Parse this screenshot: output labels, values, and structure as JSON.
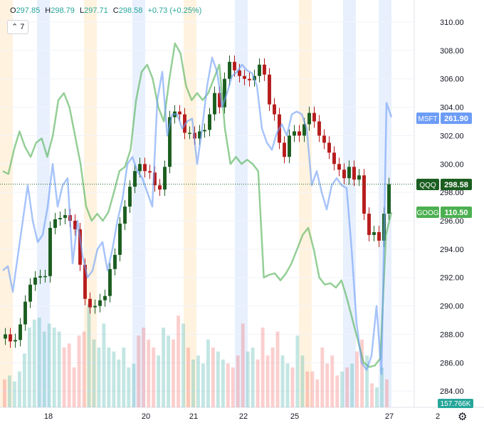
{
  "header": {
    "open_label": "O",
    "open": "297.85",
    "high_label": "H",
    "high": "298.79",
    "low_label": "L",
    "low": "297.71",
    "close_label": "C",
    "close": "298.58",
    "change": "+0.73 (+0.25%)"
  },
  "studies_button": {
    "chevron": "chevron-up-icon",
    "count": "7"
  },
  "settings_icon": "gear-icon",
  "colors": {
    "up": "#26a69a",
    "down": "#ef5350",
    "candle_up": "#1b5e20",
    "candle_down": "#b71c1c",
    "msft": "#6d9cf7",
    "goog": "#4caf50",
    "qqq_tag": "#1b5e20",
    "band_orange": "#fff3e0",
    "band_blue": "#e8f0fe"
  },
  "chart_data": {
    "type": "candlestick",
    "x_ticks": [
      "18",
      "20",
      "21",
      "22",
      "25",
      "27",
      "2"
    ],
    "y_ticks": [
      "310.00",
      "308.00",
      "306.00",
      "304.00",
      "302.00",
      "300.00",
      "298.00",
      "296.00",
      "294.00",
      "292.00",
      "290.00",
      "288.00",
      "286.00",
      "284.00"
    ],
    "ylim": [
      283,
      311
    ],
    "last_price_tags": [
      {
        "symbol": "MSFT",
        "value": "261.90"
      },
      {
        "symbol": "QQQ",
        "value": "298.58"
      },
      {
        "symbol": "GOOG",
        "value": "110.50"
      }
    ],
    "volume_label": "157.766K",
    "qqq_close": [
      288.0,
      287.5,
      287.6,
      288.7,
      290.3,
      291.5,
      292.0,
      292.1,
      292.1,
      295.5,
      296.1,
      296.2,
      296.4,
      296.0,
      295.4,
      292.9,
      290.5,
      289.9,
      290.0,
      290.4,
      290.7,
      292.6,
      293.6,
      295.8,
      297.0,
      298.4,
      299.5,
      300.0,
      299.5,
      299.4,
      298.5,
      298.2,
      299.8,
      303.3,
      303.7,
      303.5,
      302.2,
      302.2,
      301.8,
      302.3,
      302.4,
      303.5,
      305.0,
      304.0,
      306.0,
      307.2,
      306.6,
      306.2,
      306.0,
      305.9,
      306.2,
      307.0,
      306.3,
      304.2,
      303.5,
      301.5,
      300.5,
      302.0,
      302.3,
      302.0,
      302.8,
      303.6,
      303.0,
      302.0,
      301.5,
      300.8,
      300.0,
      299.6,
      299.0,
      299.8,
      298.9,
      299.2,
      296.5,
      295.0,
      295.2,
      294.6,
      296.5,
      298.58
    ],
    "msft_line": [
      292.5,
      292.8,
      291.0,
      293.5,
      296.0,
      298.5,
      296.0,
      294.5,
      295.0,
      297.0,
      300.0,
      297.0,
      298.5,
      299.0,
      293.0,
      296.0,
      293.5,
      292.0,
      292.5,
      294.0,
      294.5,
      292.5,
      294.0,
      296.0,
      297.5,
      300.0,
      300.5,
      299.5,
      299.0,
      298.0,
      297.0,
      304.5,
      306.5,
      302.0,
      303.5,
      303.5,
      302.5,
      303.0,
      303.2,
      300.0,
      302.5,
      305.5,
      307.5,
      306.5,
      304.0,
      305.0,
      306.2,
      306.5,
      307.0,
      306.6,
      306.4,
      305.5,
      302.5,
      301.5,
      301.0,
      302.2,
      302.8,
      302.0,
      303.5,
      303.7,
      303.5,
      302.5,
      298.5,
      299.5,
      298.0,
      296.8,
      298.5,
      299.0,
      298.5,
      298.3,
      294.0,
      288.8,
      286.0,
      285.5,
      286.5,
      290.0,
      285.2,
      304.3,
      303.3
    ],
    "goog_line": [
      299.5,
      299.3,
      301.0,
      302.3,
      301.2,
      300.5,
      301.5,
      301.8,
      300.5,
      302.0,
      304.5,
      305.0,
      304.0,
      302.0,
      300.0,
      297.0,
      296.0,
      296.5,
      296.0,
      296.6,
      298.0,
      299.5,
      299.8,
      301.0,
      304.5,
      306.5,
      307.0,
      306.0,
      304.0,
      303.0,
      306.0,
      308.5,
      307.8,
      305.5,
      304.5,
      305.0,
      304.5,
      305.0,
      306.0,
      307.0,
      302.5,
      300.0,
      300.5,
      300.0,
      300.3,
      300.0,
      299.5,
      292.0,
      292.2,
      292.3,
      291.8,
      292.3,
      293.0,
      294.0,
      295.0,
      295.5,
      294.0,
      292.0,
      291.5,
      291.6,
      291.3,
      291.8,
      290.5,
      289.0,
      287.5,
      286.0,
      285.7,
      285.8,
      286.3,
      295.0,
      296.6
    ],
    "volume": [
      14,
      16,
      13,
      18,
      27,
      40,
      44,
      45,
      38,
      42,
      40,
      38,
      30,
      32,
      20,
      36,
      38,
      52,
      34,
      30,
      42,
      30,
      28,
      24,
      30,
      20,
      22,
      36,
      40,
      34,
      30,
      26,
      40,
      36,
      34,
      46,
      42,
      30,
      24,
      26,
      22,
      34,
      30,
      28,
      24,
      22,
      20,
      26,
      42,
      28,
      30,
      24,
      40,
      26,
      30,
      38,
      26,
      22,
      20,
      36,
      26,
      18,
      18,
      14,
      30,
      22,
      26,
      16,
      18,
      20,
      22,
      28,
      34,
      26,
      12,
      10,
      20,
      14
    ]
  }
}
